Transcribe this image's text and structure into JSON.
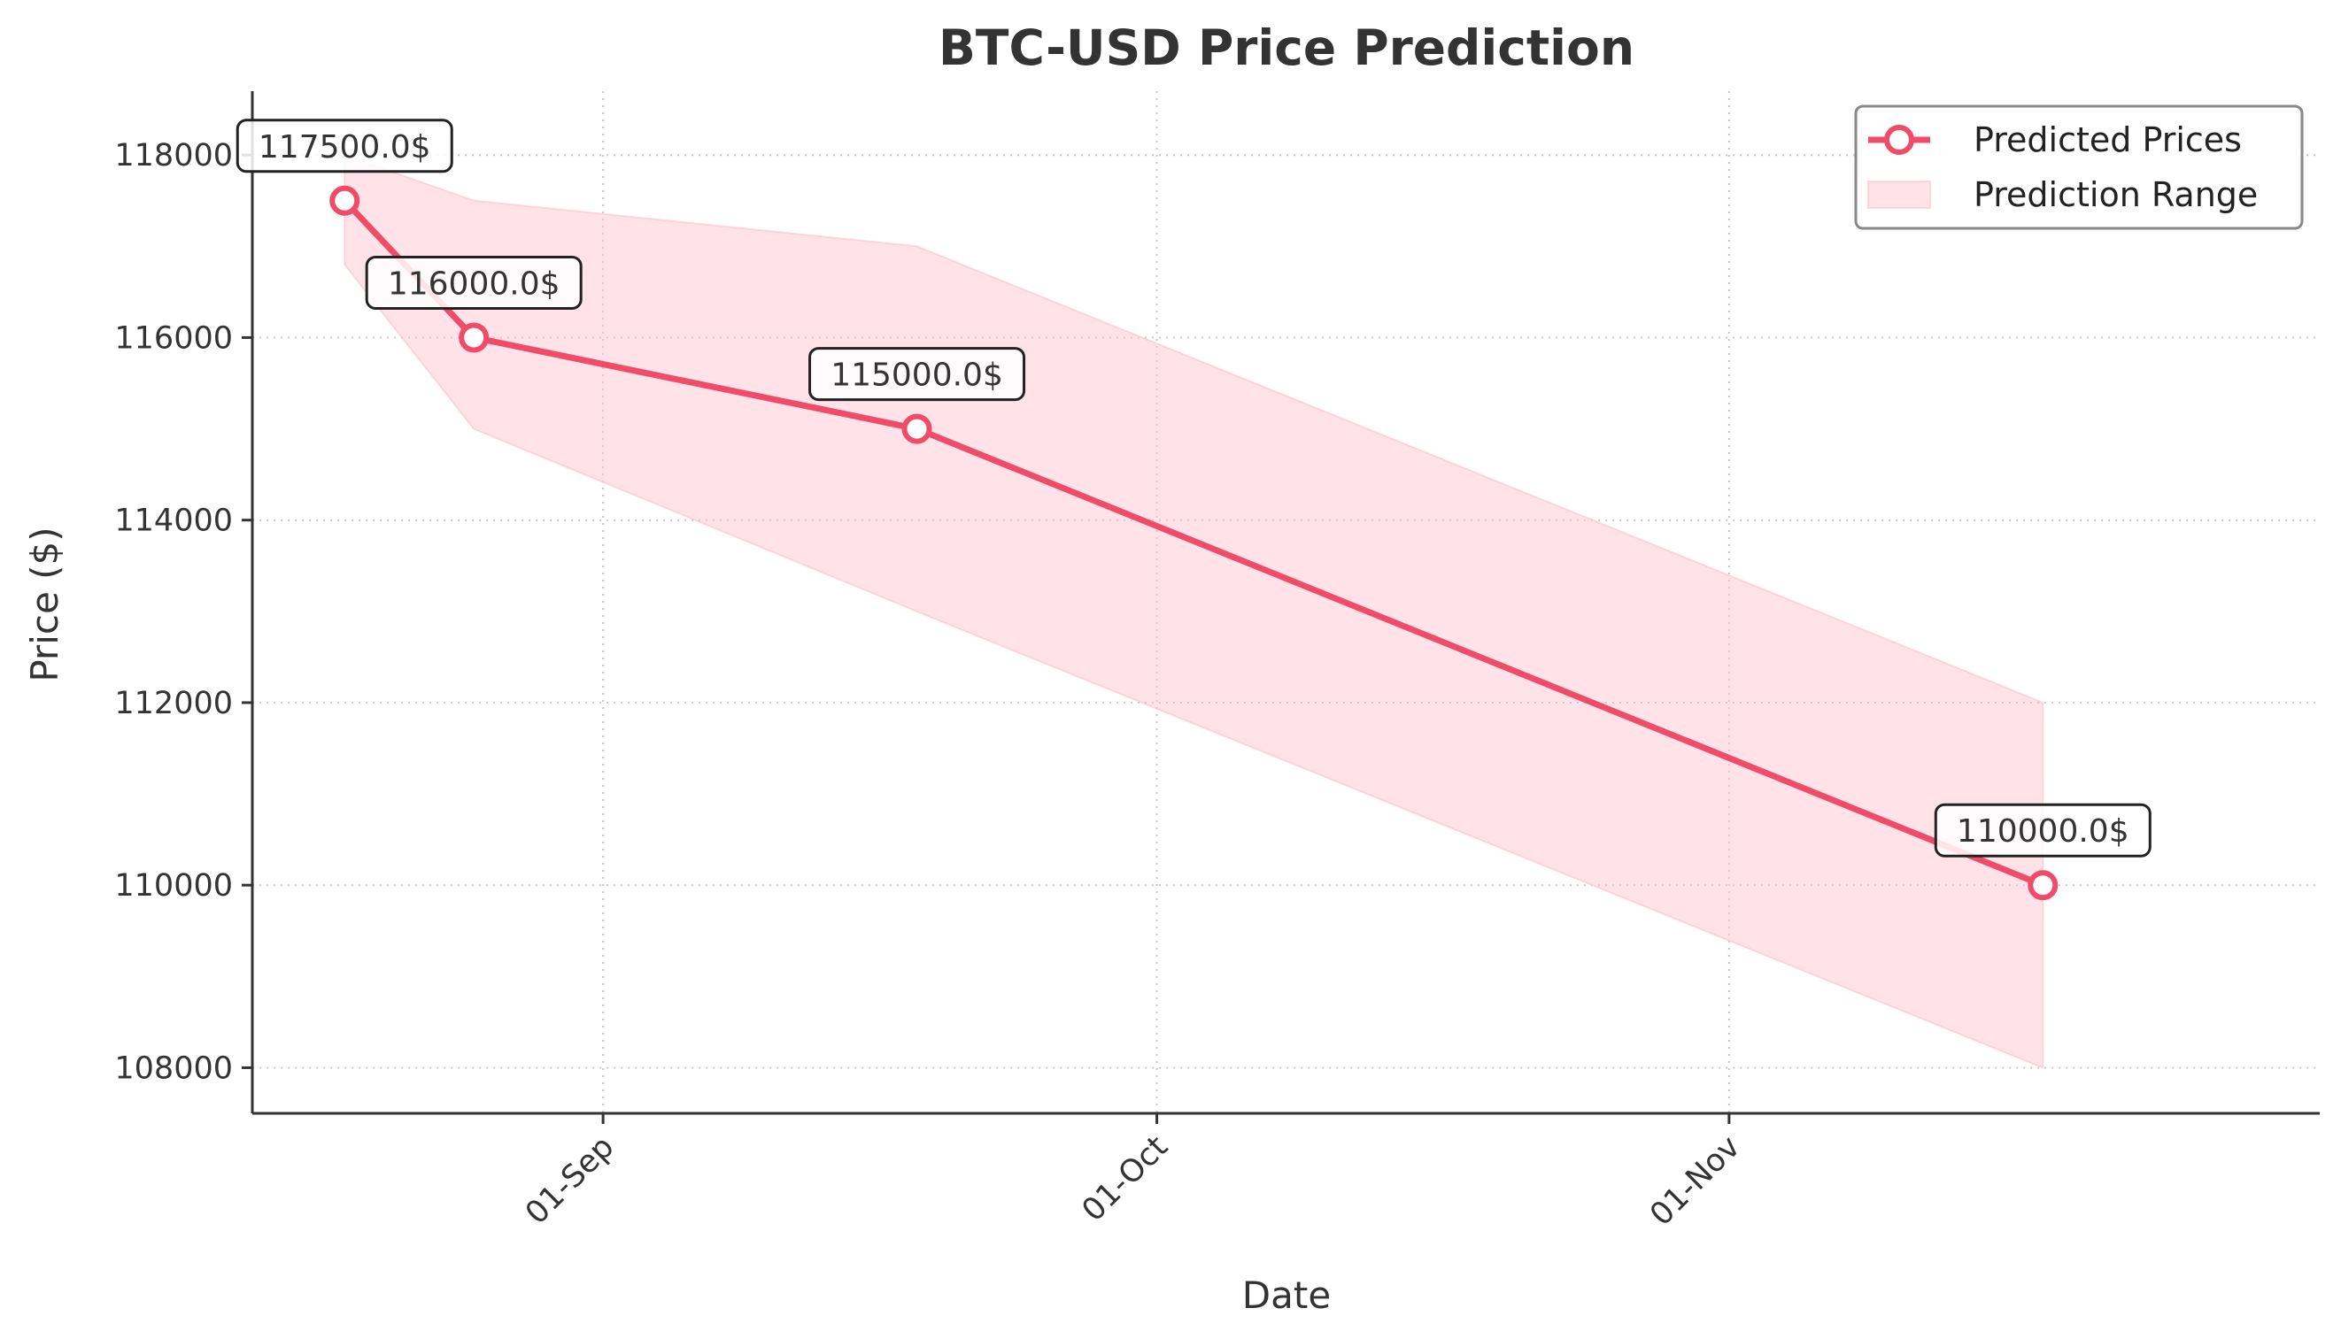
{
  "chart_data": {
    "type": "line",
    "title": "BTC-USD Price Prediction",
    "xlabel": "Date",
    "ylabel": "Price ($)",
    "x_ticks": [
      {
        "label": "01-Sep",
        "date": "2025-09-01"
      },
      {
        "label": "01-Oct",
        "date": "2025-10-01"
      },
      {
        "label": "01-Nov",
        "date": "2025-11-01"
      }
    ],
    "y_ticks": [
      108000,
      110000,
      112000,
      114000,
      116000,
      118000
    ],
    "xlim": [
      "2025-08-13",
      "2025-12-03"
    ],
    "ylim": [
      107500,
      118700
    ],
    "grid": true,
    "legend_position": "top-right",
    "series": [
      {
        "name": "Predicted Prices",
        "kind": "line",
        "color": "#f04c6a",
        "points": [
          {
            "x": "2025-08-18",
            "y": 117500,
            "label": "117500.0$"
          },
          {
            "x": "2025-08-25",
            "y": 116000,
            "label": "116000.0$"
          },
          {
            "x": "2025-09-18",
            "y": 115000,
            "label": "115000.0$"
          },
          {
            "x": "2025-11-18",
            "y": 110000,
            "label": "110000.0$"
          }
        ]
      },
      {
        "name": "Prediction Range",
        "kind": "band",
        "color": "#ffc0cb",
        "points": [
          {
            "x": "2025-08-18",
            "low": 116800,
            "high": 118000
          },
          {
            "x": "2025-08-25",
            "low": 115000,
            "high": 117500
          },
          {
            "x": "2025-09-18",
            "low": 113000,
            "high": 117000
          },
          {
            "x": "2025-11-18",
            "low": 108000,
            "high": 112000
          }
        ]
      }
    ]
  }
}
